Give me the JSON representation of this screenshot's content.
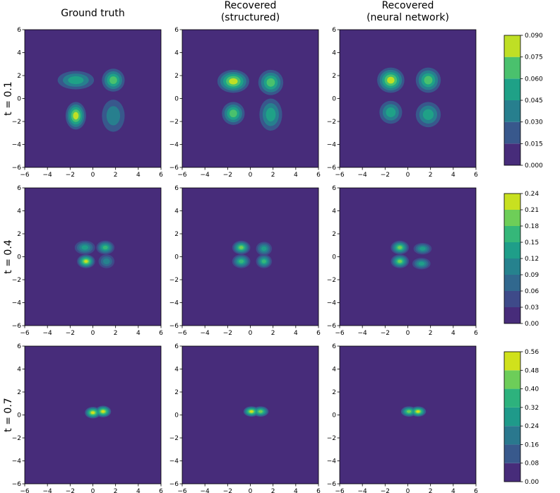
{
  "chart_data": {
    "type": "contour",
    "columns": [
      [
        "Ground truth"
      ],
      [
        "Recovered",
        "(structured)"
      ],
      [
        "Recovered",
        "(neural network)"
      ]
    ],
    "xlim": [
      -6,
      6
    ],
    "ylim": [
      -6,
      6
    ],
    "xticks": [
      {
        "value": -6,
        "label": "−6"
      },
      {
        "value": -4,
        "label": "−4"
      },
      {
        "value": -2,
        "label": "−2"
      },
      0,
      2,
      4,
      6
    ],
    "yticks": [
      {
        "value": -6,
        "label": "−6"
      },
      {
        "value": -4,
        "label": "−4"
      },
      {
        "value": -2,
        "label": "−2"
      },
      0,
      2,
      4,
      6
    ],
    "rows": [
      {
        "label": "t = 0.1",
        "ticks": [
          {
            "value": 0,
            "label": "0.000"
          },
          {
            "value": 0.015,
            "label": "0.015"
          },
          {
            "value": 0.03,
            "label": "0.030"
          },
          {
            "value": 0.045,
            "label": "0.045"
          },
          {
            "value": 0.06,
            "label": "0.060"
          },
          {
            "value": 0.075,
            "label": "0.075"
          },
          {
            "value": 0.09,
            "label": "0.090"
          }
        ],
        "colors": [
          "#472c7a",
          "#38588c",
          "#277f8e",
          "#1fa187",
          "#4ac16d",
          "#bfdf25"
        ],
        "panels": [
          [
            {
              "x": -1.5,
              "y": 1.6,
              "rx": 1.6,
              "ry": 0.8,
              "level": 3
            },
            {
              "x": 1.8,
              "y": 1.6,
              "rx": 1.0,
              "ry": 1.0,
              "level": 4
            },
            {
              "x": -1.5,
              "y": -1.5,
              "rx": 0.9,
              "ry": 1.2,
              "level": 5
            },
            {
              "x": 1.8,
              "y": -1.5,
              "rx": 1.0,
              "ry": 1.4,
              "level": 2
            }
          ],
          [
            {
              "x": -1.5,
              "y": 1.5,
              "rx": 1.4,
              "ry": 1.0,
              "level": 5
            },
            {
              "x": 1.8,
              "y": 1.4,
              "rx": 1.1,
              "ry": 1.1,
              "level": 4
            },
            {
              "x": -1.5,
              "y": -1.3,
              "rx": 1.0,
              "ry": 1.0,
              "level": 4
            },
            {
              "x": 1.8,
              "y": -1.4,
              "rx": 1.0,
              "ry": 1.4,
              "level": 3
            }
          ],
          [
            {
              "x": -1.5,
              "y": 1.6,
              "rx": 1.2,
              "ry": 1.1,
              "level": 5
            },
            {
              "x": 1.8,
              "y": 1.6,
              "rx": 1.1,
              "ry": 1.1,
              "level": 4
            },
            {
              "x": -1.5,
              "y": -1.2,
              "rx": 1.0,
              "ry": 1.0,
              "level": 3
            },
            {
              "x": 1.8,
              "y": -1.4,
              "rx": 1.1,
              "ry": 1.1,
              "level": 3
            }
          ]
        ]
      },
      {
        "label": "t = 0.4",
        "ticks": [
          {
            "value": 0,
            "label": "0.00"
          },
          {
            "value": 0.03,
            "label": "0.03"
          },
          {
            "value": 0.06,
            "label": "0.06"
          },
          {
            "value": 0.09,
            "label": "0.09"
          },
          {
            "value": 0.12,
            "label": "0.12"
          },
          {
            "value": 0.15,
            "label": "0.15"
          },
          {
            "value": 0.18,
            "label": "0.18"
          },
          {
            "value": 0.21,
            "label": "0.21"
          },
          {
            "value": 0.24,
            "label": "0.24"
          }
        ],
        "colors": [
          "#472c7a",
          "#3e4a89",
          "#31688e",
          "#26828e",
          "#1f9e89",
          "#35b779",
          "#6ece58",
          "#c8e020"
        ],
        "panels": [
          [
            {
              "x": -0.7,
              "y": 0.8,
              "rx": 0.9,
              "ry": 0.6,
              "level": 4
            },
            {
              "x": 1.1,
              "y": 0.8,
              "rx": 0.8,
              "ry": 0.6,
              "level": 5
            },
            {
              "x": -0.6,
              "y": -0.4,
              "rx": 0.8,
              "ry": 0.6,
              "level": 7
            },
            {
              "x": 1.2,
              "y": -0.4,
              "rx": 0.7,
              "ry": 0.6,
              "level": 3
            }
          ],
          [
            {
              "x": -0.8,
              "y": 0.8,
              "rx": 0.8,
              "ry": 0.6,
              "level": 6
            },
            {
              "x": 1.2,
              "y": 0.7,
              "rx": 0.7,
              "ry": 0.6,
              "level": 4
            },
            {
              "x": -0.8,
              "y": -0.4,
              "rx": 0.8,
              "ry": 0.6,
              "level": 5
            },
            {
              "x": 1.2,
              "y": -0.4,
              "rx": 0.7,
              "ry": 0.6,
              "level": 5
            }
          ],
          [
            {
              "x": -0.7,
              "y": 0.8,
              "rx": 0.8,
              "ry": 0.6,
              "level": 6
            },
            {
              "x": 1.3,
              "y": 0.7,
              "rx": 0.8,
              "ry": 0.5,
              "level": 4
            },
            {
              "x": -0.7,
              "y": -0.4,
              "rx": 0.8,
              "ry": 0.6,
              "level": 6
            },
            {
              "x": 1.2,
              "y": -0.6,
              "rx": 0.8,
              "ry": 0.5,
              "level": 4
            }
          ]
        ]
      },
      {
        "label": "t = 0.7",
        "ticks": [
          {
            "value": 0,
            "label": "0.00"
          },
          {
            "value": 0.08,
            "label": "0.08"
          },
          {
            "value": 0.16,
            "label": "0.16"
          },
          {
            "value": 0.24,
            "label": "0.24"
          },
          {
            "value": 0.32,
            "label": "0.32"
          },
          {
            "value": 0.4,
            "label": "0.40"
          },
          {
            "value": 0.48,
            "label": "0.48"
          },
          {
            "value": 0.56,
            "label": "0.56"
          }
        ],
        "colors": [
          "#472c7a",
          "#38598c",
          "#2a788e",
          "#1f9a8a",
          "#2db27d",
          "#6dcd59",
          "#d0e11c"
        ],
        "panels": [
          [
            {
              "x": 0,
              "y": 0.2,
              "rx": 0.7,
              "ry": 0.5,
              "level": 6
            },
            {
              "x": 0.9,
              "y": 0.3,
              "rx": 0.7,
              "ry": 0.5,
              "level": 6
            }
          ],
          [
            {
              "x": 0.1,
              "y": 0.3,
              "rx": 0.7,
              "ry": 0.45,
              "level": 6
            },
            {
              "x": 0.9,
              "y": 0.3,
              "rx": 0.7,
              "ry": 0.45,
              "level": 5
            }
          ],
          [
            {
              "x": 0.1,
              "y": 0.3,
              "rx": 0.7,
              "ry": 0.45,
              "level": 5
            },
            {
              "x": 0.9,
              "y": 0.3,
              "rx": 0.7,
              "ry": 0.45,
              "level": 6
            }
          ]
        ]
      }
    ]
  }
}
